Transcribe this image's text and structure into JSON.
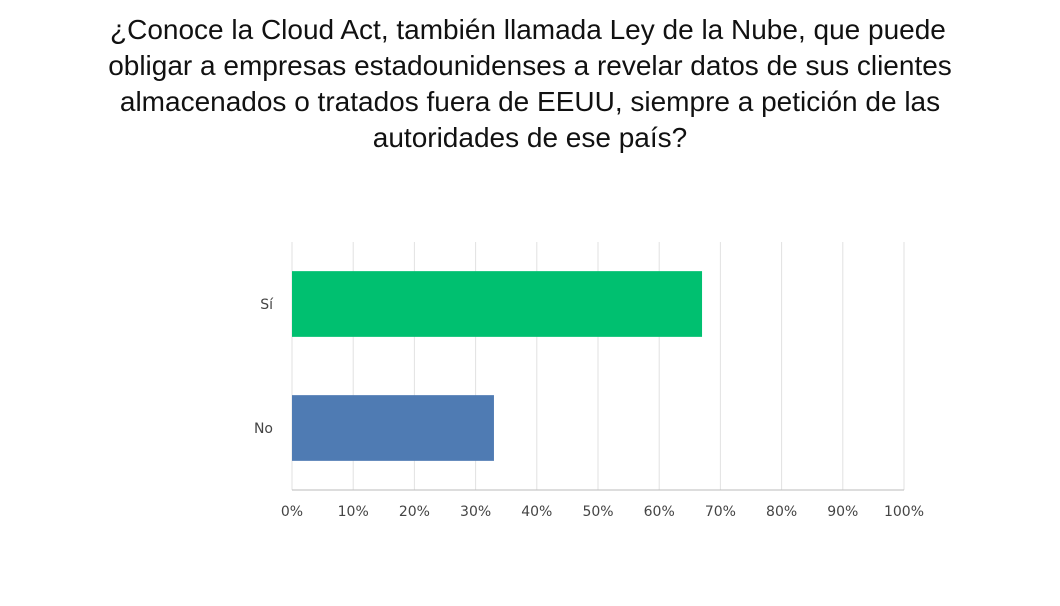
{
  "title_lines": [
    "¿Conoce la Cloud Act, también llamada Ley de la Nube, que puede",
    "obligar a empresas estadounidenses a revelar datos de sus clientes",
    "almacenados o tratados fuera de EEUU, siempre a petición de las",
    "autoridades de ese país?"
  ],
  "chart_data": {
    "type": "bar",
    "orientation": "horizontal",
    "categories": [
      "Sí",
      "No"
    ],
    "values": [
      67,
      33
    ],
    "unit": "%",
    "xlim": [
      0,
      100
    ],
    "x_ticks": [
      0,
      10,
      20,
      30,
      40,
      50,
      60,
      70,
      80,
      90,
      100
    ],
    "x_tick_labels": [
      "0%",
      "10%",
      "20%",
      "30%",
      "40%",
      "50%",
      "60%",
      "70%",
      "80%",
      "90%",
      "100%"
    ],
    "colors": [
      "#00c070",
      "#4f7bb3"
    ],
    "grid": true,
    "legend": "none"
  }
}
